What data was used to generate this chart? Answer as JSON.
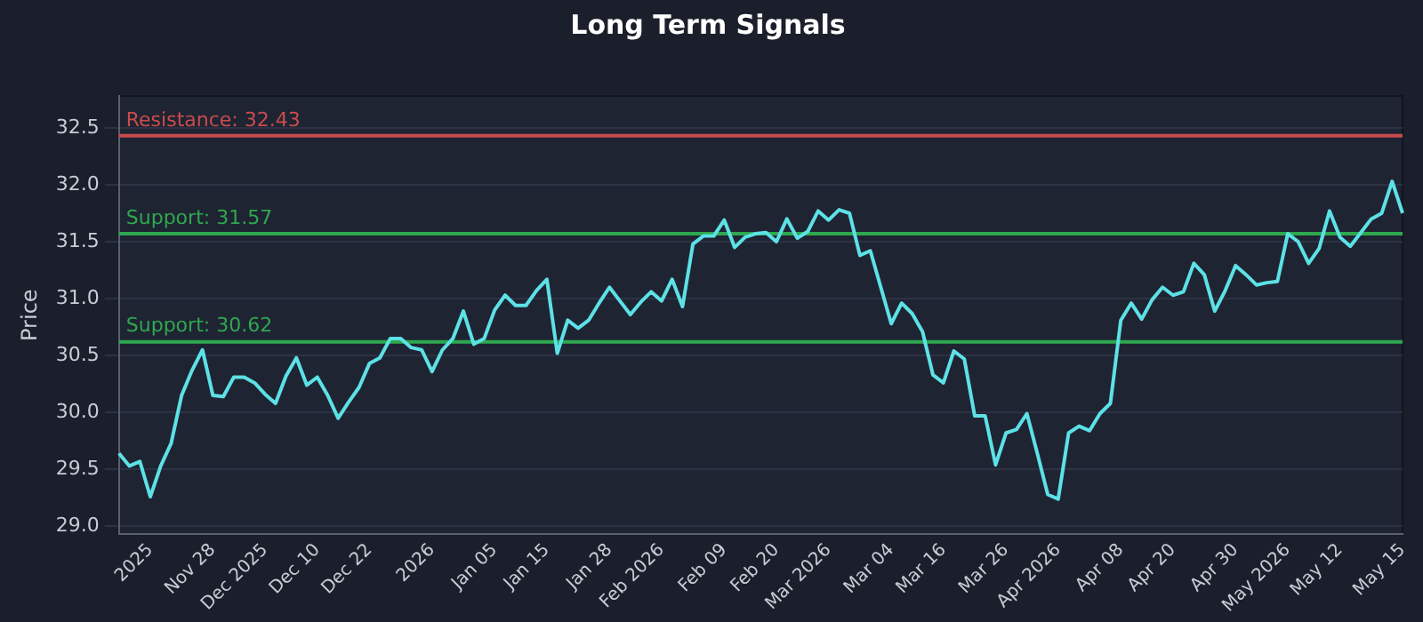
{
  "chart_data": {
    "type": "line",
    "title": "Long Term Signals",
    "ylabel": "Price",
    "categories": [
      null,
      null,
      null,
      "2025",
      null,
      null,
      null,
      null,
      null,
      "Nov 28",
      null,
      null,
      null,
      null,
      "Dec 2025",
      null,
      null,
      null,
      null,
      "Dec 10",
      null,
      null,
      null,
      null,
      "Dec 22",
      null,
      null,
      null,
      null,
      null,
      "2026",
      null,
      null,
      null,
      null,
      null,
      "Jan 05",
      null,
      null,
      null,
      null,
      "Jan 15",
      null,
      null,
      null,
      null,
      null,
      "Jan 28",
      null,
      null,
      null,
      null,
      "Feb 2026",
      null,
      null,
      null,
      null,
      null,
      "Feb 09",
      null,
      null,
      null,
      null,
      "Feb 20",
      null,
      null,
      null,
      null,
      "Mar 2026",
      null,
      null,
      null,
      null,
      null,
      "Mar 04",
      null,
      null,
      null,
      null,
      "Mar 16",
      null,
      null,
      null,
      null,
      null,
      "Mar 26",
      null,
      null,
      null,
      null,
      "Apr 2026",
      null,
      null,
      null,
      null,
      null,
      "Apr 08",
      null,
      null,
      null,
      null,
      "Apr 20",
      null,
      null,
      null,
      null,
      null,
      "Apr 30",
      null,
      null,
      null,
      null,
      "May 2026",
      null,
      null,
      null,
      null,
      "May 12",
      null,
      null,
      null,
      null,
      null,
      "May 15"
    ],
    "series": [
      {
        "color": "#5ce1e6",
        "values": [
          29.64,
          29.53,
          29.57,
          29.26,
          29.53,
          29.73,
          30.15,
          30.37,
          30.55,
          30.15,
          30.14,
          30.31,
          30.31,
          30.26,
          30.16,
          30.08,
          30.32,
          30.48,
          30.24,
          30.31,
          30.15,
          29.95,
          30.09,
          30.22,
          30.43,
          30.48,
          30.65,
          30.65,
          30.57,
          30.55,
          30.36,
          30.55,
          30.65,
          30.89,
          30.6,
          30.65,
          30.9,
          31.03,
          30.94,
          30.94,
          31.07,
          31.17,
          30.52,
          30.81,
          30.74,
          30.81,
          30.96,
          31.1,
          30.98,
          30.86,
          30.97,
          31.06,
          30.98,
          31.17,
          30.93,
          31.48,
          31.55,
          31.55,
          31.69,
          31.45,
          31.54,
          31.57,
          31.58,
          31.5,
          31.7,
          31.53,
          31.59,
          31.77,
          31.69,
          31.78,
          31.75,
          31.38,
          31.42,
          31.1,
          30.78,
          30.96,
          30.87,
          30.71,
          30.33,
          30.26,
          30.54,
          30.47,
          29.97,
          29.97,
          29.54,
          29.82,
          29.85,
          29.99,
          29.64,
          29.28,
          29.24,
          29.82,
          29.88,
          29.84,
          29.99,
          30.08,
          30.81,
          30.96,
          30.82,
          30.99,
          31.1,
          31.03,
          31.06,
          31.31,
          31.21,
          30.89,
          31.07,
          31.29,
          31.21,
          31.12,
          31.14,
          31.15,
          31.57,
          31.5,
          31.31,
          31.44,
          31.77,
          31.54,
          31.46,
          31.58,
          31.7,
          31.75,
          32.03,
          31.75
        ]
      }
    ],
    "ylim": [
      28.93,
      32.78
    ],
    "yticks": [
      {
        "value": 29,
        "label": "29.0"
      },
      {
        "value": 29.5,
        "label": "29.5"
      },
      {
        "value": 30,
        "label": "30.0"
      },
      {
        "value": 30.5,
        "label": "30.5"
      },
      {
        "value": 31,
        "label": "31.0"
      },
      {
        "value": 31.5,
        "label": "31.5"
      },
      {
        "value": 32,
        "label": "32.0"
      },
      {
        "value": 32.5,
        "label": "32.5"
      }
    ],
    "ref_lines": [
      {
        "axis": "y",
        "value": 32.43,
        "label": "Resistance: 32.43",
        "color": "#c94c4c"
      },
      {
        "axis": "y",
        "value": 31.57,
        "label": "Support: 31.57",
        "color": "#2ea84f"
      },
      {
        "axis": "y",
        "value": 30.62,
        "label": "Support: 30.62",
        "color": "#2ea84f"
      }
    ],
    "grid": "y",
    "legend": false,
    "marker": "none",
    "line_style": "solid"
  }
}
